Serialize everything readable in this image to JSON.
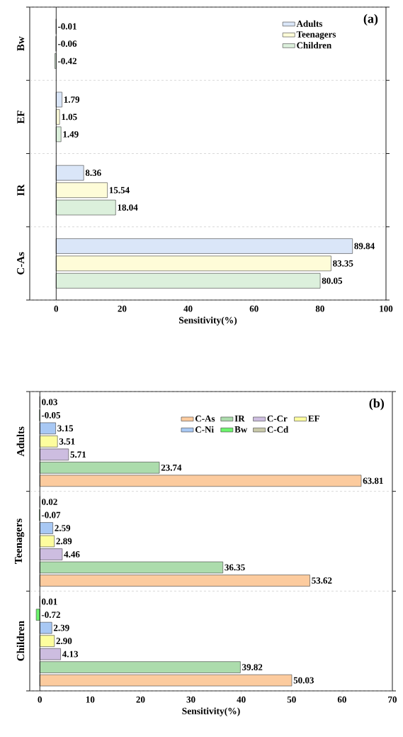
{
  "chart_data": [
    {
      "type": "bar",
      "orientation": "horizontal",
      "categories": [
        "Bw",
        "EF",
        "IR",
        "C-As"
      ],
      "xlabel": "Sensitivity(%)",
      "xlim": [
        -8,
        100
      ],
      "xticks": [
        0,
        20,
        40,
        60,
        80,
        100
      ],
      "grid": "y",
      "legend": "top right",
      "annotations": [
        "(a)"
      ],
      "ref_lines": [
        {
          "axis": "x",
          "value": 0
        }
      ],
      "series": [
        {
          "name": "Adults",
          "color": "#dae6f8",
          "values": [
            -0.01,
            1.79,
            8.36,
            89.84
          ],
          "value_labels": [
            "-0.01",
            "1.79",
            "8.36",
            "89.84"
          ]
        },
        {
          "name": "Teenagers",
          "color": "#fefcd8",
          "values": [
            -0.06,
            1.05,
            15.54,
            83.35
          ],
          "value_labels": [
            "-0.06",
            "1.05",
            "15.54",
            "83.35"
          ]
        },
        {
          "name": "Children",
          "color": "#dcf0dc",
          "values": [
            -0.42,
            1.49,
            18.04,
            80.05
          ],
          "value_labels": [
            "-0.42",
            "1.49",
            "18.04",
            "80.05"
          ]
        }
      ]
    },
    {
      "type": "bar",
      "orientation": "horizontal",
      "categories": [
        "Adults",
        "Teenagers",
        "Children"
      ],
      "xlabel": "Sensitivity(%)",
      "xlim": [
        -2,
        70
      ],
      "xticks": [
        0,
        10,
        20,
        30,
        40,
        50,
        60,
        70
      ],
      "grid": "y",
      "legend": "top right",
      "annotations": [
        "(b)"
      ],
      "ref_lines": [
        {
          "axis": "x",
          "value": 0
        }
      ],
      "series": [
        {
          "name": "C-As",
          "color": "#fccb9e",
          "values": [
            63.81,
            53.62,
            50.03
          ],
          "value_labels": [
            "63.81",
            "53.62",
            "50.03"
          ]
        },
        {
          "name": "IR",
          "color": "#acdcac",
          "values": [
            23.74,
            36.35,
            39.82
          ],
          "value_labels": [
            "23.74",
            "36.35",
            "39.82"
          ]
        },
        {
          "name": "C-Cr",
          "color": "#cdbde0",
          "values": [
            5.71,
            4.46,
            4.13
          ],
          "value_labels": [
            "5.71",
            "4.46",
            "4.13"
          ]
        },
        {
          "name": "EF",
          "color": "#fdfd9e",
          "values": [
            3.51,
            2.89,
            2.9
          ],
          "value_labels": [
            "3.51",
            "2.89",
            "2.90"
          ]
        },
        {
          "name": "C-Ni",
          "color": "#a8c8f4",
          "values": [
            3.15,
            2.59,
            2.39
          ],
          "value_labels": [
            "3.15",
            "2.59",
            "2.39"
          ]
        },
        {
          "name": "Bw",
          "color": "#6cf46c",
          "values": [
            -0.05,
            -0.07,
            -0.72
          ],
          "value_labels": [
            "-0.05",
            "-0.07",
            "-0.72"
          ]
        },
        {
          "name": "C-Cd",
          "color": "#c8c8a8",
          "values": [
            0.03,
            0.02,
            0.01
          ],
          "value_labels": [
            "0.03",
            "0.02",
            "0.01"
          ]
        }
      ]
    }
  ]
}
